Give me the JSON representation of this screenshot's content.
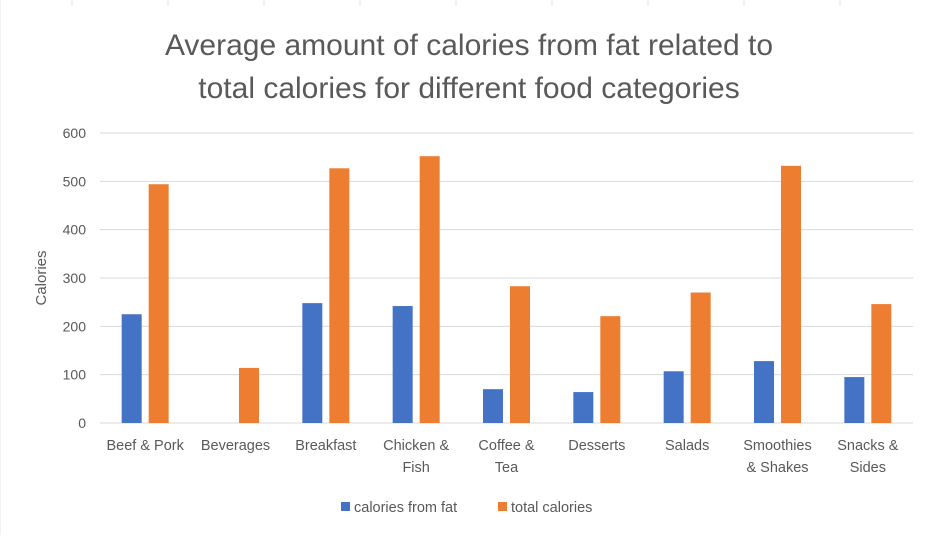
{
  "chart_data": {
    "type": "bar",
    "title": "Average amount of calories from fat related to total calories for different food categories",
    "title_lines": [
      "Average amount of calories from fat related to",
      "total calories for different food categories"
    ],
    "xlabel": "",
    "ylabel": "Calories",
    "ylim": [
      0,
      600
    ],
    "yticks": [
      0,
      100,
      200,
      300,
      400,
      500,
      600
    ],
    "grid": true,
    "legend": "bottom",
    "categories": [
      "Beef & Pork",
      "Beverages",
      "Breakfast",
      "Chicken & Fish",
      "Coffee & Tea",
      "Desserts",
      "Salads",
      "Smoothies & Shakes",
      "Snacks & Sides"
    ],
    "category_label_lines": [
      [
        "Beef & Pork"
      ],
      [
        "Beverages"
      ],
      [
        "Breakfast"
      ],
      [
        "Chicken &",
        "Fish"
      ],
      [
        "Coffee &",
        "Tea"
      ],
      [
        "Desserts"
      ],
      [
        "Salads"
      ],
      [
        "Smoothies",
        "& Shakes"
      ],
      [
        "Snacks &",
        "Sides"
      ]
    ],
    "series": [
      {
        "name": "calories from fat",
        "color": "#4472C4",
        "values": [
          225,
          0,
          248,
          242,
          70,
          64,
          107,
          128,
          95
        ]
      },
      {
        "name": "total calories",
        "color": "#ED7D31",
        "values": [
          494,
          114,
          527,
          552,
          283,
          221,
          270,
          532,
          246
        ]
      }
    ]
  },
  "colors": {
    "grid": "#D9D9D9",
    "axis_text": "#595959",
    "sheet_grid": "#E4E4E4"
  }
}
